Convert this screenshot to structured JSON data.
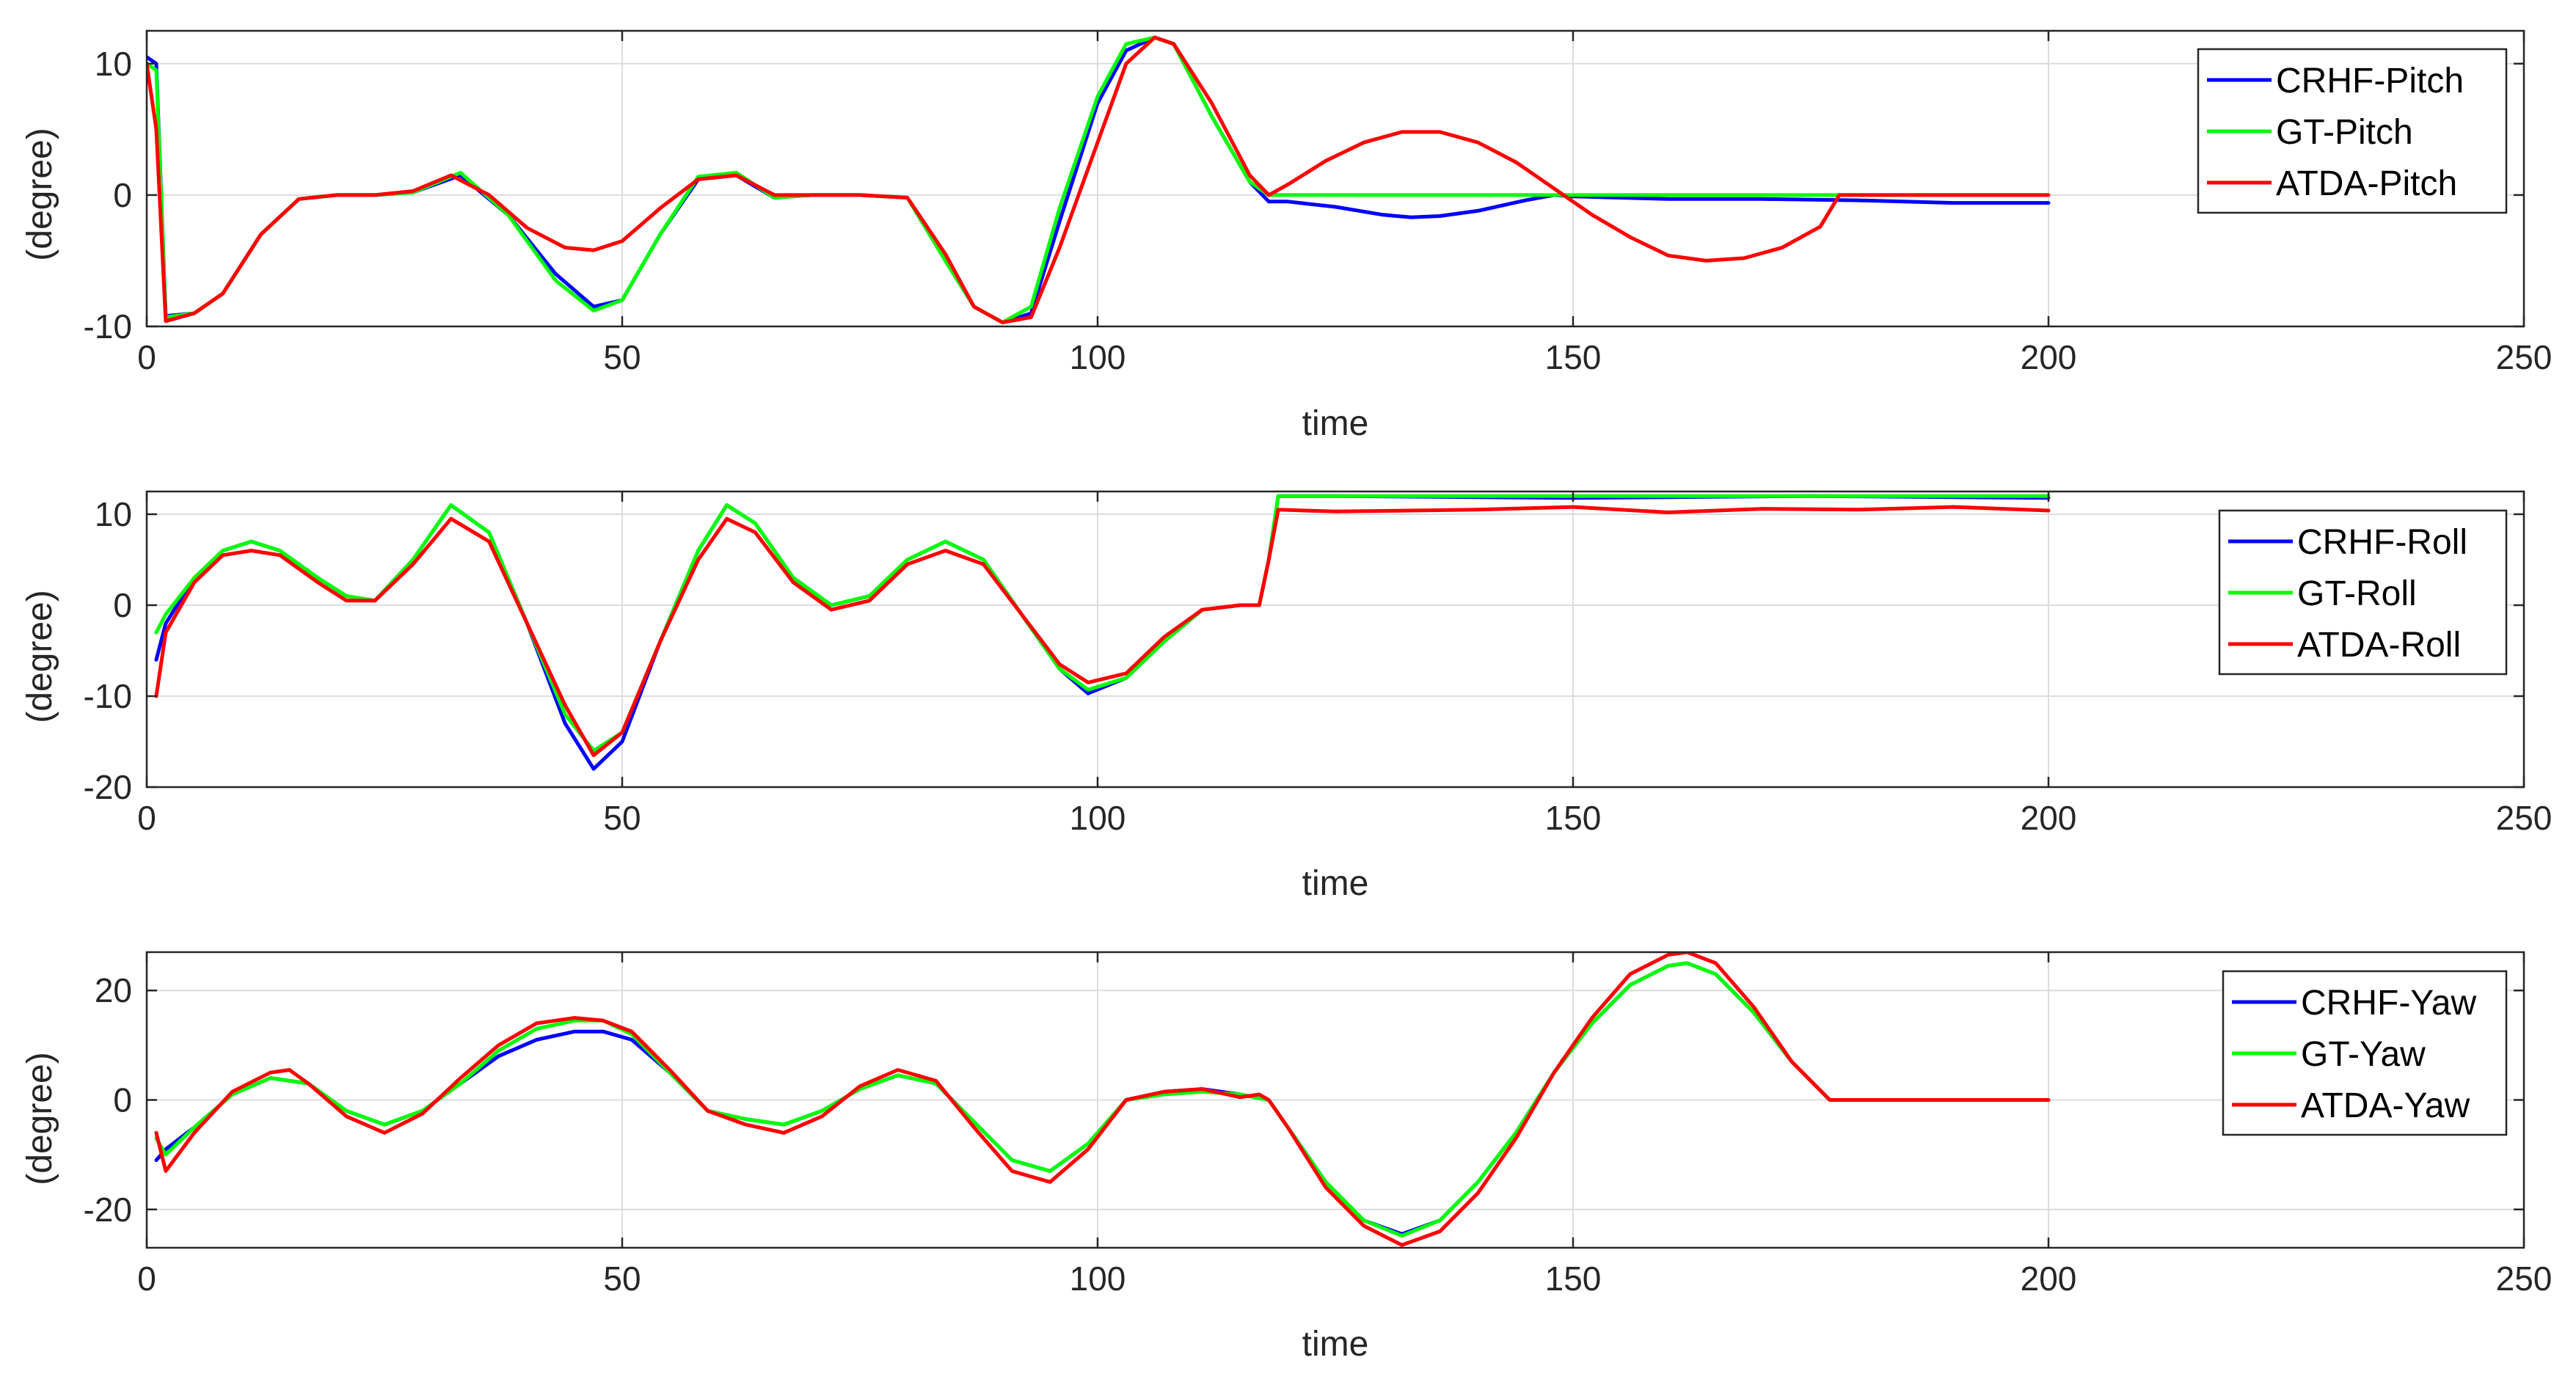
{
  "chart_data": [
    {
      "type": "line",
      "title": "",
      "xlabel": "time",
      "ylabel": "(degree)",
      "xlim": [
        0,
        250
      ],
      "ylim": [
        -10,
        12.5
      ],
      "xticks": [
        0,
        50,
        100,
        150,
        200,
        250
      ],
      "yticks": [
        -10,
        0,
        10
      ],
      "grid": true,
      "legend_position": "top-right",
      "series": [
        {
          "name": "CRHF-Pitch",
          "color": "#0000ff",
          "x": [
            0,
            1,
            2,
            5,
            8,
            12,
            16,
            20,
            24,
            28,
            33,
            38,
            43,
            47,
            50,
            54,
            58,
            62,
            66,
            70,
            75,
            80,
            84,
            87,
            90,
            93,
            96,
            100,
            103,
            106,
            108,
            112,
            116,
            118,
            120,
            125,
            130,
            133,
            136,
            140,
            145,
            148,
            150,
            160,
            170,
            180,
            190,
            200
          ],
          "y": [
            10.5,
            10,
            -9.2,
            -9,
            -7.5,
            -3,
            -0.3,
            0,
            0,
            0.2,
            1.5,
            -1.5,
            -6,
            -8.5,
            -8,
            -3,
            1.2,
            1.5,
            -0.2,
            0,
            0,
            -0.2,
            -5,
            -8.5,
            -9.7,
            -9,
            -2,
            7,
            11,
            12,
            11.5,
            6,
            1,
            -0.5,
            -0.5,
            -0.9,
            -1.5,
            -1.7,
            -1.6,
            -1.2,
            -0.4,
            0,
            -0.1,
            -0.3,
            -0.3,
            -0.4,
            -0.6,
            -0.6
          ]
        },
        {
          "name": "GT-Pitch",
          "color": "#00ff00",
          "x": [
            0,
            1,
            2,
            5,
            8,
            12,
            16,
            20,
            24,
            28,
            33,
            38,
            43,
            47,
            50,
            54,
            58,
            62,
            66,
            70,
            75,
            80,
            84,
            87,
            90,
            93,
            96,
            100,
            103,
            106,
            108,
            112,
            116,
            118,
            120,
            140,
            160,
            180,
            200
          ],
          "y": [
            10,
            9.5,
            -9.3,
            -9,
            -7.5,
            -3,
            -0.3,
            0,
            0,
            0.2,
            1.7,
            -1.5,
            -6.5,
            -8.8,
            -8,
            -3,
            1.4,
            1.7,
            -0.2,
            0,
            0,
            -0.2,
            -5,
            -8.5,
            -9.7,
            -8.5,
            -1,
            7.5,
            11.5,
            12,
            11.5,
            6,
            1,
            0,
            0,
            0,
            0,
            0,
            0
          ]
        },
        {
          "name": "ATDA-Pitch",
          "color": "#ff0000",
          "x": [
            0,
            1,
            2,
            5,
            8,
            12,
            16,
            20,
            24,
            28,
            32,
            36,
            40,
            44,
            47,
            50,
            54,
            58,
            62,
            66,
            70,
            75,
            80,
            84,
            87,
            90,
            93,
            96,
            100,
            103,
            106,
            108,
            112,
            116,
            118,
            120,
            124,
            128,
            132,
            136,
            140,
            144,
            148,
            152,
            156,
            160,
            164,
            168,
            172,
            176,
            178,
            185,
            190,
            200
          ],
          "y": [
            10,
            5,
            -9.6,
            -9,
            -7.5,
            -3,
            -0.3,
            0,
            0,
            0.3,
            1.5,
            0,
            -2.5,
            -4,
            -4.2,
            -3.5,
            -1,
            1.2,
            1.5,
            0,
            0,
            0,
            -0.2,
            -4.5,
            -8.5,
            -9.7,
            -9.3,
            -4,
            4,
            10,
            12,
            11.5,
            7,
            1.5,
            0,
            0.8,
            2.6,
            4,
            4.8,
            4.8,
            4,
            2.5,
            0.5,
            -1.5,
            -3.2,
            -4.6,
            -5,
            -4.8,
            -4,
            -2.4,
            0,
            0,
            0,
            0
          ]
        }
      ]
    },
    {
      "type": "line",
      "title": "",
      "xlabel": "time",
      "ylabel": "(degree)",
      "xlim": [
        0,
        250
      ],
      "ylim": [
        -20,
        12.5
      ],
      "xticks": [
        0,
        50,
        100,
        150,
        200,
        250
      ],
      "yticks": [
        -20,
        -10,
        0,
        10
      ],
      "grid": true,
      "legend_position": "top-right",
      "series": [
        {
          "name": "CRHF-Roll",
          "color": "#0000ff",
          "x": [
            1,
            2,
            5,
            8,
            11,
            14,
            18,
            21,
            24,
            28,
            32,
            36,
            40,
            44,
            47,
            50,
            54,
            58,
            61,
            64,
            68,
            72,
            76,
            80,
            84,
            88,
            92,
            96,
            99,
            103,
            107,
            111,
            115,
            117,
            118,
            119,
            125,
            150,
            175,
            200
          ],
          "y": [
            -6,
            -2,
            3,
            6,
            7,
            6,
            3,
            1,
            0.5,
            5,
            11,
            8,
            -2,
            -13,
            -18,
            -15,
            -4,
            6,
            11,
            9,
            3,
            0,
            1,
            5,
            7,
            5,
            -1,
            -7,
            -9.7,
            -8,
            -4,
            -0.5,
            0,
            0,
            5,
            12,
            12,
            11.8,
            12,
            11.8
          ]
        },
        {
          "name": "GT-Roll",
          "color": "#00ff00",
          "x": [
            1,
            2,
            5,
            8,
            11,
            14,
            18,
            21,
            24,
            28,
            32,
            36,
            40,
            44,
            47,
            50,
            54,
            58,
            61,
            64,
            68,
            72,
            76,
            80,
            84,
            88,
            92,
            96,
            99,
            103,
            107,
            111,
            115,
            117,
            118,
            119,
            125,
            150,
            175,
            200
          ],
          "y": [
            -3,
            -1,
            3,
            6,
            7,
            6,
            3,
            1,
            0.5,
            5,
            11,
            8,
            -2,
            -12,
            -16,
            -14,
            -4,
            6,
            11,
            9,
            3,
            0,
            1,
            5,
            7,
            5,
            -1,
            -7,
            -9.3,
            -8,
            -4,
            -0.5,
            0,
            0,
            5,
            12,
            12,
            12,
            12,
            12
          ]
        },
        {
          "name": "ATDA-Roll",
          "color": "#ff0000",
          "x": [
            1,
            2,
            5,
            8,
            11,
            14,
            18,
            21,
            24,
            28,
            32,
            36,
            40,
            44,
            47,
            50,
            54,
            58,
            61,
            64,
            68,
            72,
            76,
            80,
            84,
            88,
            92,
            96,
            99,
            103,
            107,
            111,
            115,
            117,
            118,
            119,
            125,
            140,
            150,
            160,
            170,
            180,
            190,
            200
          ],
          "y": [
            -10,
            -3,
            2.5,
            5.5,
            6,
            5.5,
            2.5,
            0.5,
            0.5,
            4.5,
            9.5,
            7,
            -2,
            -11,
            -16.5,
            -14,
            -4,
            5,
            9.5,
            8,
            2.5,
            -0.5,
            0.5,
            4.5,
            6,
            4.5,
            -1,
            -6.5,
            -8.5,
            -7.5,
            -3.5,
            -0.5,
            0,
            0,
            5,
            10.5,
            10.3,
            10.5,
            10.8,
            10.2,
            10.6,
            10.5,
            10.8,
            10.4
          ]
        }
      ]
    },
    {
      "type": "line",
      "title": "",
      "xlabel": "time",
      "ylabel": "(degree)",
      "xlim": [
        0,
        250
      ],
      "ylim": [
        -27,
        27
      ],
      "xticks": [
        0,
        50,
        100,
        150,
        200,
        250
      ],
      "yticks": [
        -20,
        0,
        20
      ],
      "grid": true,
      "legend_position": "top-right",
      "series": [
        {
          "name": "CRHF-Yaw",
          "color": "#0000ff",
          "x": [
            1,
            2,
            5,
            9,
            13,
            17,
            21,
            25,
            29,
            33,
            37,
            41,
            45,
            48,
            51,
            55,
            59,
            63,
            67,
            71,
            75,
            79,
            83,
            87,
            91,
            95,
            99,
            103,
            107,
            111,
            115,
            118,
            120,
            124,
            128,
            132,
            136,
            140,
            144,
            148,
            152,
            156,
            160,
            162,
            165,
            169,
            173,
            177,
            185,
            200
          ],
          "y": [
            -11,
            -9,
            -5,
            1,
            4,
            3,
            -2,
            -4.5,
            -2,
            3,
            8,
            11,
            12.5,
            12.5,
            11,
            5,
            -2,
            -3.5,
            -4.5,
            -2,
            2,
            4.5,
            3,
            -4,
            -11,
            -13,
            -8,
            0,
            1.5,
            2,
            1,
            0,
            -5,
            -15,
            -22,
            -24.5,
            -22,
            -15,
            -6,
            5,
            14,
            21,
            24.5,
            25,
            23,
            16,
            7,
            0,
            0,
            0
          ]
        },
        {
          "name": "GT-Yaw",
          "color": "#00ff00",
          "x": [
            1,
            2,
            5,
            9,
            13,
            17,
            21,
            25,
            29,
            33,
            37,
            41,
            45,
            48,
            51,
            55,
            59,
            63,
            67,
            71,
            75,
            79,
            83,
            87,
            91,
            95,
            99,
            103,
            107,
            111,
            115,
            118,
            120,
            124,
            128,
            132,
            136,
            140,
            144,
            148,
            152,
            156,
            160,
            162,
            165,
            169,
            173,
            177,
            185,
            200
          ],
          "y": [
            -7,
            -10,
            -5,
            1,
            4,
            3,
            -2,
            -4.5,
            -2,
            3,
            9,
            13,
            14.5,
            14.5,
            12,
            5,
            -2,
            -3.5,
            -4.5,
            -2,
            2,
            4.5,
            3,
            -4,
            -11,
            -13,
            -8,
            0,
            1,
            1.5,
            1,
            0,
            -5,
            -15,
            -22,
            -24.8,
            -22,
            -15,
            -6,
            5,
            14,
            21,
            24.5,
            25,
            23,
            16,
            7,
            0,
            0,
            0
          ]
        },
        {
          "name": "ATDA-Yaw",
          "color": "#ff0000",
          "x": [
            1,
            2,
            5,
            9,
            13,
            15,
            17,
            21,
            25,
            29,
            33,
            37,
            41,
            45,
            48,
            51,
            55,
            59,
            63,
            67,
            71,
            75,
            79,
            83,
            87,
            91,
            95,
            99,
            103,
            107,
            111,
            115,
            117,
            118,
            120,
            124,
            128,
            132,
            136,
            140,
            144,
            148,
            152,
            156,
            160,
            162,
            165,
            169,
            173,
            177,
            185,
            200
          ],
          "y": [
            -6,
            -13,
            -6,
            1.5,
            5,
            5.5,
            3,
            -3,
            -6,
            -2.5,
            4,
            10,
            14,
            15,
            14.5,
            12.5,
            5.5,
            -2,
            -4.5,
            -6,
            -3,
            2.5,
            5.5,
            3.5,
            -5,
            -13,
            -15,
            -9,
            0,
            1.5,
            2,
            0.5,
            1,
            0,
            -5,
            -16,
            -23,
            -26.5,
            -24,
            -17,
            -7,
            5,
            15,
            23,
            26.5,
            27,
            25,
            17,
            7,
            0,
            0,
            0
          ]
        }
      ]
    }
  ]
}
